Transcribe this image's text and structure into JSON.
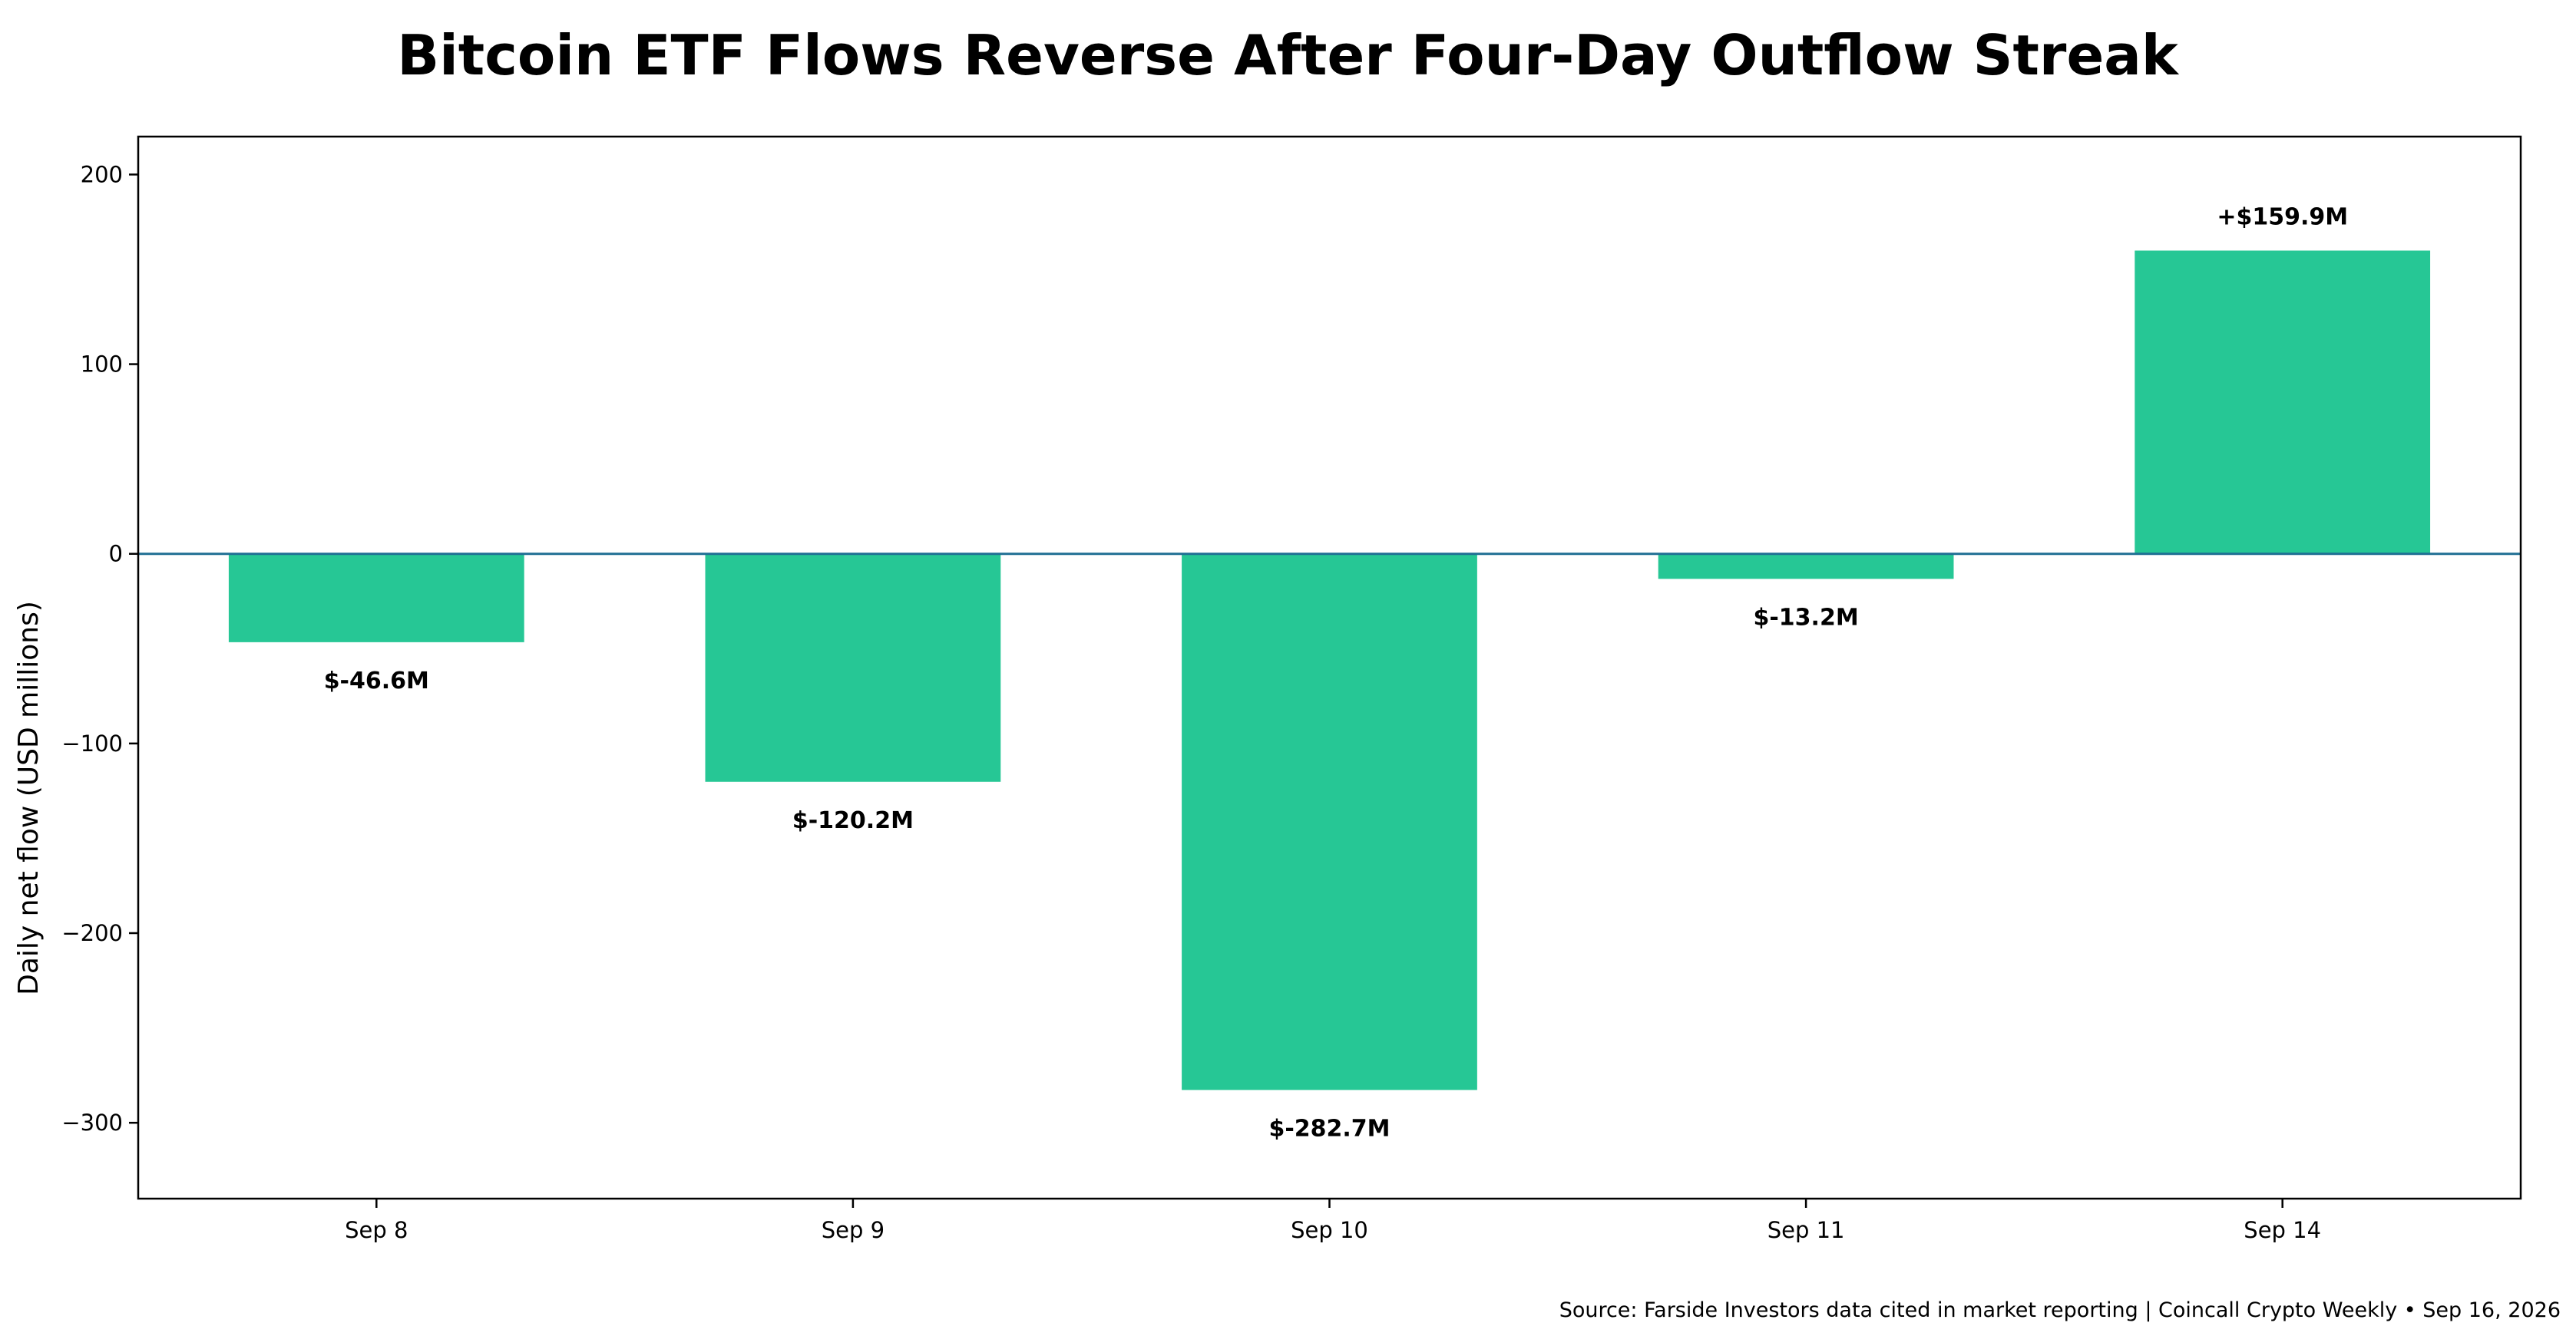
{
  "chart_data": {
    "type": "bar",
    "title": "Bitcoin ETF Flows Reverse After Four-Day Outflow Streak",
    "xlabel": "",
    "ylabel": "Daily net flow (USD millions)",
    "categories": [
      "Sep 8",
      "Sep 9",
      "Sep 10",
      "Sep 11",
      "Sep 14"
    ],
    "values": [
      -46.6,
      -120.2,
      -282.7,
      -13.2,
      159.9
    ],
    "data_labels": [
      "$-46.6M",
      "$-120.2M",
      "$-282.7M",
      "$-13.2M",
      "+$159.9M"
    ],
    "ylim": [
      -340,
      220
    ],
    "yticks": [
      -300,
      -200,
      -100,
      0,
      100,
      200
    ],
    "ytick_labels": [
      "−300",
      "−200",
      "−100",
      "0",
      "100",
      "200"
    ],
    "grid": false,
    "legend": "none",
    "zero_line": true,
    "colors": {
      "bar": "#26c795",
      "zero_line": "#1f6f93",
      "axes": "#000000",
      "text": "#000000",
      "background": "#ffffff"
    },
    "source": "Source: Farside Investors data cited in market reporting | Coincall Crypto Weekly • Sep 16, 2026"
  }
}
